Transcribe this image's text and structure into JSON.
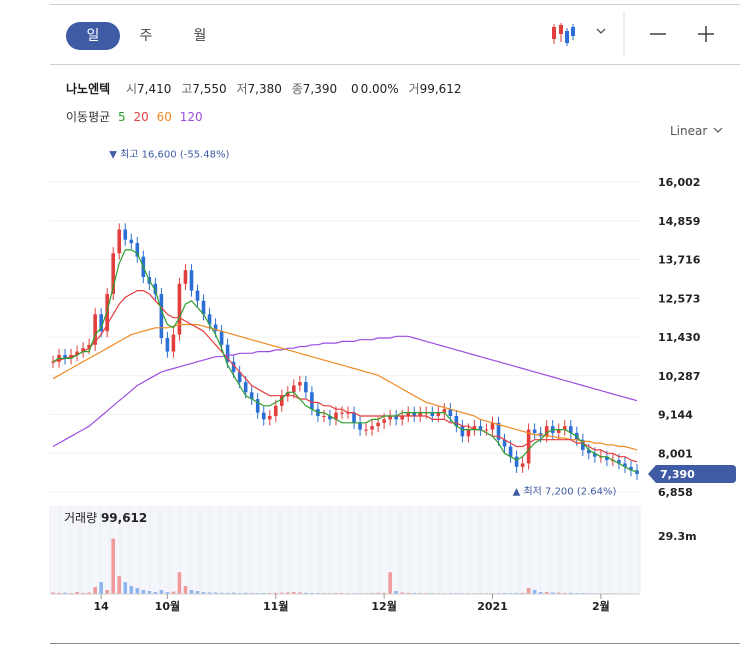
{
  "tabs": [
    "일",
    "주",
    "월"
  ],
  "stock": {
    "name": "나노엔텍",
    "open_label": "시",
    "open": "7,410",
    "high_label": "고",
    "high": "7,550",
    "low_label": "저",
    "low": "7,380",
    "close_label": "종",
    "close": "7,390",
    "change": "0",
    "change_pct": "0.00%",
    "volume_label": "거",
    "volume": "99,612"
  },
  "ma": {
    "label": "이동평균",
    "periods": [
      {
        "value": "5",
        "color": "#2ea02e"
      },
      {
        "value": "20",
        "color": "#e33e3e"
      },
      {
        "value": "60",
        "color": "#f08a24"
      },
      {
        "value": "120",
        "color": "#9b4de0"
      }
    ]
  },
  "scale": {
    "label": "Linear"
  },
  "icons": {
    "chart_type": "candlestick-icon",
    "dropdown": "chevron-down-icon",
    "zoom_out": "minus-icon",
    "zoom_in": "plus-icon"
  },
  "colors": {
    "up": "#e33e3e",
    "down": "#2b6fd6",
    "accent": "#3f5ba4"
  },
  "chart_data": {
    "type": "candlestick",
    "ylim": [
      6858,
      16600
    ],
    "yticks": [
      "16,002",
      "14,859",
      "13,716",
      "12,573",
      "11,430",
      "10,287",
      "9,144",
      "8,001",
      "6,858"
    ],
    "last_price": "7,390",
    "high_annotation": "최고 16,600 (-55.48%)",
    "low_annotation": "최저 7,200 (2.64%)",
    "high_value": 16600,
    "low_value": 7200,
    "xticks": [
      "14",
      "10월",
      "11월",
      "12월",
      "2021",
      "2월"
    ],
    "xtick_index": [
      8,
      19,
      37,
      55,
      73,
      91
    ],
    "close": [
      10700,
      10900,
      10800,
      10900,
      11000,
      11100,
      11200,
      12100,
      11600,
      12700,
      13900,
      14600,
      14300,
      14200,
      13800,
      13200,
      13000,
      12700,
      11400,
      11000,
      11500,
      13000,
      13400,
      12800,
      12500,
      12100,
      11800,
      11600,
      11200,
      10700,
      10400,
      10100,
      9800,
      9600,
      9200,
      9000,
      9100,
      9400,
      9700,
      9800,
      10000,
      10100,
      9800,
      9300,
      9100,
      9100,
      9000,
      9200,
      9200,
      9200,
      8900,
      8700,
      8700,
      8800,
      8900,
      9000,
      9100,
      9000,
      9100,
      9200,
      9100,
      9200,
      9200,
      9100,
      9200,
      9300,
      9100,
      8800,
      8500,
      8700,
      8800,
      8700,
      8700,
      8900,
      8400,
      8200,
      7900,
      7600,
      7700,
      8700,
      8600,
      8500,
      8800,
      8600,
      8700,
      8800,
      8600,
      8400,
      8100,
      8000,
      7900,
      7900,
      7800,
      7800,
      7700,
      7600,
      7500,
      7390
    ],
    "ma5": [
      10700,
      10800,
      10800,
      10800,
      10900,
      11000,
      11000,
      11500,
      11700,
      12200,
      12900,
      13600,
      14000,
      14000,
      13900,
      13500,
      13100,
      12800,
      12200,
      11800,
      11700,
      12000,
      12400,
      12500,
      12300,
      12100,
      11800,
      11500,
      11100,
      10600,
      10300,
      10000,
      9700,
      9600,
      9500,
      9400,
      9400,
      9500,
      9600,
      9800,
      9800,
      9600,
      9400,
      9300,
      9200,
      9200,
      9100,
      9000,
      8900,
      8900,
      8900,
      8900,
      8900,
      9000,
      9000,
      9100,
      9100,
      9100,
      9200,
      9200,
      9200,
      9200,
      9200,
      9200,
      9200,
      9200,
      9000,
      8800,
      8700,
      8700,
      8700,
      8700,
      8600,
      8500,
      8300,
      8000,
      7900,
      7800,
      7900,
      8100,
      8300,
      8400,
      8600,
      8700,
      8700,
      8700,
      8600,
      8500,
      8300,
      8100,
      8000,
      7900,
      7900,
      7800,
      7700,
      7600,
      7500,
      7450
    ],
    "ma20": [
      10700,
      10750,
      10800,
      10850,
      10900,
      11000,
      11100,
      11300,
      11500,
      11800,
      12100,
      12400,
      12600,
      12700,
      12800,
      12800,
      12700,
      12500,
      12300,
      12100,
      12000,
      12000,
      11900,
      11800,
      11700,
      11600,
      11400,
      11200,
      11000,
      10800,
      10600,
      10400,
      10200,
      10000,
      9900,
      9800,
      9700,
      9700,
      9700,
      9700,
      9700,
      9600,
      9600,
      9500,
      9500,
      9400,
      9400,
      9300,
      9300,
      9200,
      9200,
      9100,
      9100,
      9100,
      9100,
      9100,
      9100,
      9100,
      9100,
      9100,
      9100,
      9100,
      9100,
      9000,
      9000,
      9000,
      8900,
      8900,
      8800,
      8800,
      8700,
      8700,
      8600,
      8500,
      8500,
      8400,
      8300,
      8200,
      8200,
      8300,
      8400,
      8400,
      8400,
      8400,
      8400,
      8400,
      8400,
      8300,
      8300,
      8200,
      8100,
      8100,
      8000,
      8000,
      7900,
      7900,
      7800,
      7750
    ],
    "ma60": [
      10200,
      10300,
      10400,
      10500,
      10600,
      10700,
      10800,
      10900,
      11000,
      11100,
      11200,
      11300,
      11400,
      11500,
      11550,
      11600,
      11650,
      11700,
      11700,
      11700,
      11750,
      11800,
      11800,
      11800,
      11800,
      11750,
      11700,
      11650,
      11600,
      11550,
      11500,
      11450,
      11400,
      11350,
      11300,
      11250,
      11200,
      11150,
      11100,
      11050,
      11000,
      10950,
      10900,
      10850,
      10800,
      10750,
      10700,
      10650,
      10600,
      10550,
      10500,
      10450,
      10400,
      10350,
      10300,
      10200,
      10100,
      10000,
      9900,
      9800,
      9700,
      9600,
      9500,
      9450,
      9400,
      9350,
      9300,
      9250,
      9200,
      9150,
      9100,
      9000,
      8950,
      8900,
      8850,
      8800,
      8750,
      8700,
      8650,
      8600,
      8550,
      8550,
      8500,
      8500,
      8450,
      8450,
      8400,
      8400,
      8350,
      8350,
      8300,
      8300,
      8250,
      8250,
      8200,
      8200,
      8150,
      8100
    ],
    "ma120": [
      8200,
      8300,
      8400,
      8500,
      8600,
      8700,
      8800,
      8950,
      9100,
      9250,
      9400,
      9550,
      9700,
      9850,
      10000,
      10100,
      10200,
      10300,
      10400,
      10450,
      10500,
      10550,
      10600,
      10650,
      10700,
      10750,
      10800,
      10850,
      10850,
      10900,
      10900,
      10950,
      10950,
      10950,
      11000,
      11000,
      11000,
      11050,
      11050,
      11100,
      11100,
      11150,
      11150,
      11200,
      11200,
      11250,
      11250,
      11250,
      11300,
      11300,
      11300,
      11350,
      11350,
      11350,
      11400,
      11400,
      11400,
      11450,
      11450,
      11450,
      11400,
      11350,
      11300,
      11250,
      11200,
      11150,
      11100,
      11050,
      11000,
      10950,
      10900,
      10850,
      10800,
      10750,
      10700,
      10650,
      10600,
      10550,
      10500,
      10450,
      10400,
      10350,
      10300,
      10250,
      10200,
      10150,
      10100,
      10050,
      10000,
      9950,
      9900,
      9850,
      9800,
      9750,
      9700,
      9650,
      9600,
      9550
    ],
    "volume_label": "거래량",
    "volume_last": "99,612",
    "volume_ytick": "29.3m",
    "volume_max": 29.3,
    "volume": [
      0.8,
      0.6,
      0.7,
      0.5,
      1.0,
      0.6,
      0.8,
      3.5,
      6.0,
      2.0,
      28.0,
      9.0,
      6.0,
      4.0,
      3.0,
      2.0,
      1.5,
      1.0,
      2.0,
      1.0,
      1.2,
      11.0,
      4.0,
      2.0,
      1.5,
      1.0,
      0.8,
      0.8,
      0.6,
      0.6,
      0.7,
      0.5,
      0.6,
      0.5,
      0.5,
      0.5,
      0.5,
      0.6,
      0.7,
      0.8,
      1.0,
      0.8,
      0.6,
      0.5,
      0.5,
      0.5,
      0.4,
      0.5,
      0.5,
      0.4,
      0.4,
      0.4,
      0.4,
      0.5,
      0.6,
      0.6,
      11.0,
      1.5,
      0.8,
      0.6,
      0.5,
      0.5,
      0.5,
      0.4,
      0.4,
      0.4,
      0.4,
      0.4,
      0.4,
      0.4,
      0.4,
      0.4,
      0.4,
      0.4,
      0.4,
      0.5,
      0.5,
      0.6,
      0.6,
      3.0,
      2.0,
      1.0,
      1.0,
      0.8,
      0.7,
      0.6,
      0.6,
      0.5,
      0.5,
      0.4,
      0.4,
      0.4,
      0.4,
      0.4,
      0.3,
      0.3,
      0.3,
      0.3
    ]
  }
}
